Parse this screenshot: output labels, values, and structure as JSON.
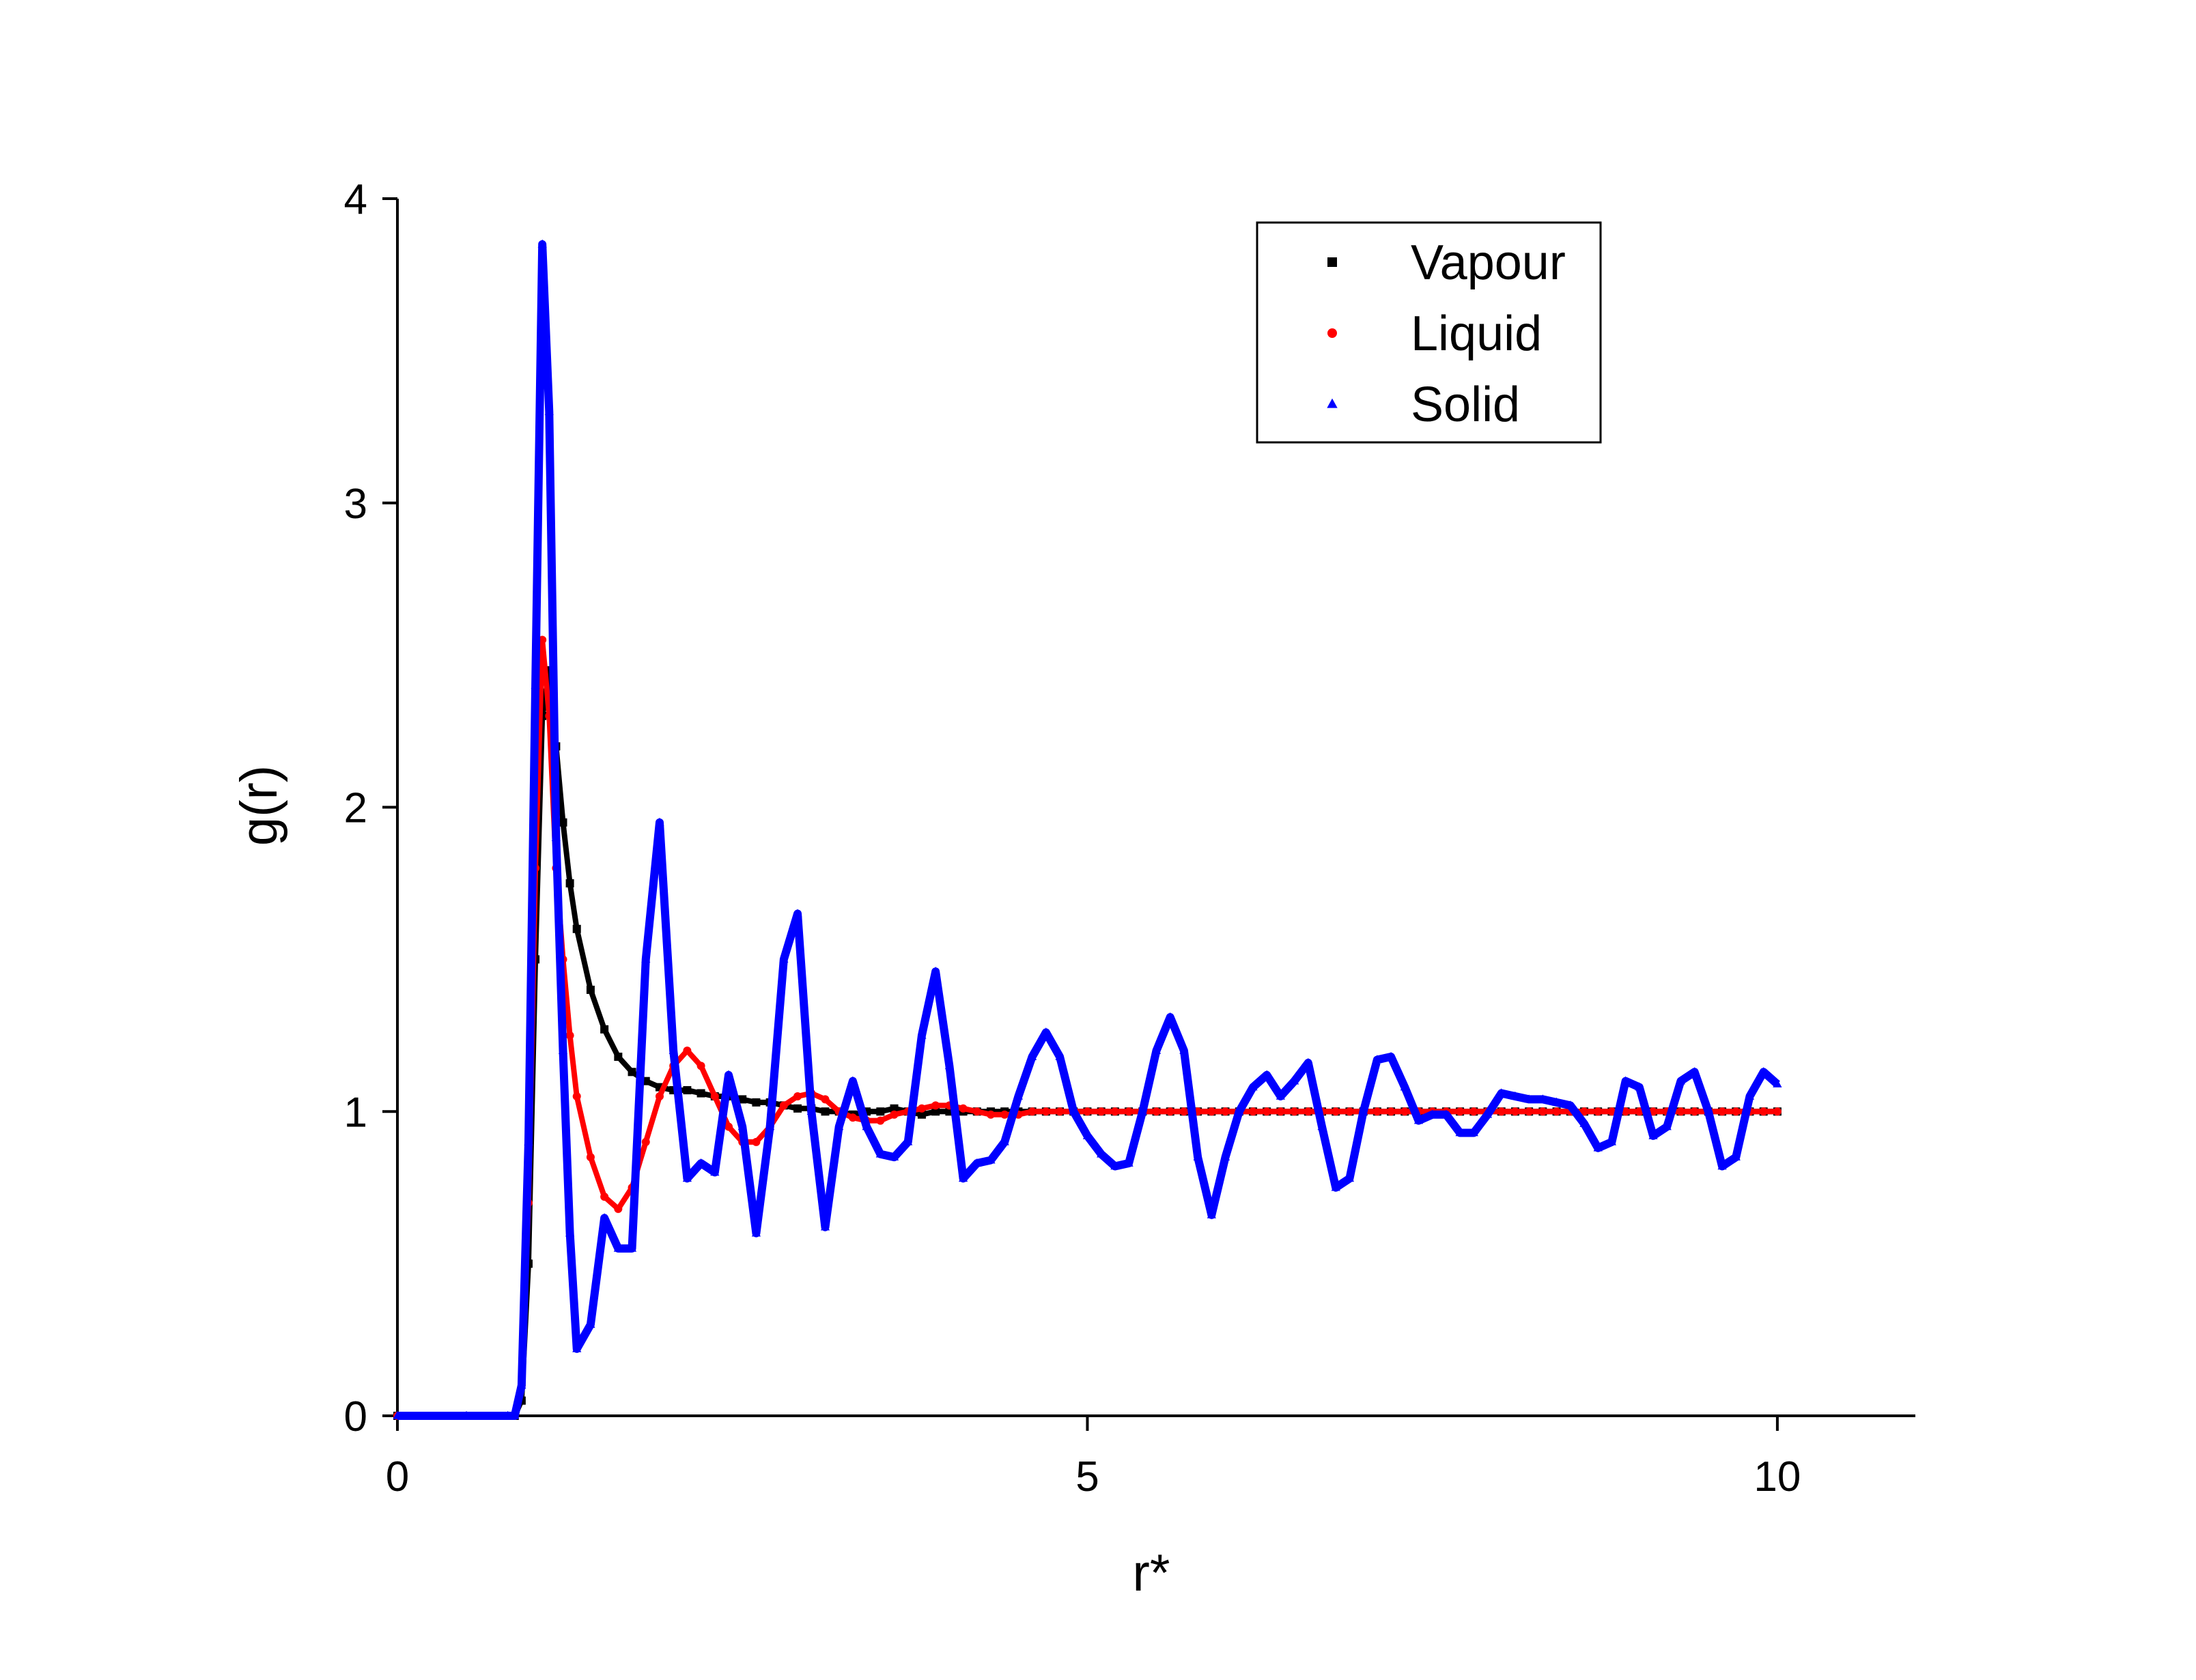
{
  "chart_data": {
    "type": "scatter",
    "x_label": "r*",
    "y_label": "g(r)",
    "x": [
      0,
      0.5,
      0.8,
      0.85,
      0.9,
      0.95,
      1.0,
      1.05,
      1.1,
      1.15,
      1.2,
      1.25,
      1.3,
      1.4,
      1.5,
      1.6,
      1.7,
      1.8,
      1.9,
      2.0,
      2.1,
      2.2,
      2.3,
      2.4,
      2.5,
      2.6,
      2.7,
      2.8,
      2.9,
      3.0,
      3.1,
      3.2,
      3.3,
      3.4,
      3.5,
      3.6,
      3.7,
      3.8,
      3.9,
      4.0,
      4.1,
      4.2,
      4.3,
      4.4,
      4.5,
      4.6,
      4.7,
      4.8,
      4.9,
      5.0,
      5.1,
      5.2,
      5.3,
      5.4,
      5.5,
      5.6,
      5.7,
      5.8,
      5.9,
      6.0,
      6.1,
      6.2,
      6.3,
      6.4,
      6.5,
      6.6,
      6.7,
      6.8,
      6.9,
      7.0,
      7.1,
      7.2,
      7.3,
      7.4,
      7.5,
      7.6,
      7.7,
      7.8,
      7.9,
      8.0,
      8.1,
      8.2,
      8.3,
      8.4,
      8.5,
      8.6,
      8.7,
      8.8,
      8.9,
      9.0,
      9.1,
      9.2,
      9.3,
      9.4,
      9.5,
      9.6,
      9.7,
      9.8,
      9.9,
      10.0
    ],
    "series": [
      {
        "name": "Vapour",
        "color": "#000000",
        "marker": "square",
        "values": [
          0,
          0,
          0,
          0,
          0.05,
          0.5,
          1.5,
          2.3,
          2.45,
          2.2,
          1.95,
          1.75,
          1.6,
          1.4,
          1.27,
          1.18,
          1.13,
          1.1,
          1.08,
          1.07,
          1.07,
          1.06,
          1.05,
          1.05,
          1.04,
          1.03,
          1.03,
          1.02,
          1.01,
          1.01,
          1.0,
          1.0,
          0.99,
          1.0,
          1.0,
          1.01,
          1.0,
          0.99,
          1.0,
          1.0,
          1.0,
          1.0,
          1.0,
          1.0,
          1.0,
          1.0,
          1.0,
          1.0,
          1.0,
          1.0,
          1.0,
          1.0,
          1.0,
          1.0,
          1.0,
          1.0,
          1.0,
          1.0,
          1.0,
          1.0,
          1.0,
          1.0,
          1.0,
          1.0,
          1.0,
          1.0,
          1.0,
          1.0,
          1.0,
          1.0,
          1.0,
          1.0,
          1.0,
          1.0,
          1.0,
          1.0,
          1.0,
          1.0,
          1.0,
          1.0,
          1.0,
          1.0,
          1.0,
          1.0,
          1.0,
          1.0,
          1.0,
          1.0,
          1.0,
          1.0,
          1.0,
          1.0,
          1.0,
          1.0,
          1.0,
          1.0,
          1.0,
          1.0,
          1.0,
          1.0
        ]
      },
      {
        "name": "Liquid",
        "color": "#ff0000",
        "marker": "circle",
        "values": [
          0,
          0,
          0,
          0,
          0.1,
          0.7,
          1.8,
          2.55,
          2.3,
          1.8,
          1.5,
          1.25,
          1.05,
          0.85,
          0.72,
          0.68,
          0.75,
          0.9,
          1.05,
          1.15,
          1.2,
          1.15,
          1.05,
          0.95,
          0.9,
          0.9,
          0.95,
          1.02,
          1.05,
          1.06,
          1.04,
          1.0,
          0.98,
          0.97,
          0.97,
          0.99,
          1.0,
          1.01,
          1.02,
          1.02,
          1.01,
          1.0,
          0.99,
          0.99,
          0.99,
          1.0,
          1.0,
          1.0,
          1.0,
          1.0,
          1.0,
          1.0,
          1.0,
          1.0,
          1.0,
          1.0,
          1.0,
          1.0,
          1.0,
          1.0,
          1.0,
          1.0,
          1.0,
          1.0,
          1.0,
          1.0,
          1.0,
          1.0,
          1.0,
          1.0,
          1.0,
          1.0,
          1.0,
          1.0,
          1.0,
          1.0,
          1.0,
          1.0,
          1.0,
          1.0,
          1.0,
          1.0,
          1.0,
          1.0,
          1.0,
          1.0,
          1.0,
          1.0,
          1.0,
          1.0,
          1.0,
          1.0,
          1.0,
          1.0,
          1.0,
          1.0,
          1.0,
          1.0,
          1.0,
          1.0
        ]
      },
      {
        "name": "Solid",
        "color": "#0000ff",
        "marker": "triangle",
        "values": [
          0,
          0,
          0,
          0,
          0.1,
          0.9,
          2.4,
          3.85,
          3.3,
          1.9,
          1.2,
          0.6,
          0.22,
          0.3,
          0.65,
          0.55,
          0.55,
          1.5,
          1.95,
          1.2,
          0.78,
          0.83,
          0.8,
          1.12,
          0.95,
          0.6,
          0.95,
          1.5,
          1.65,
          1.0,
          0.62,
          0.95,
          1.1,
          0.95,
          0.86,
          0.85,
          0.9,
          1.25,
          1.46,
          1.15,
          0.78,
          0.83,
          0.84,
          0.9,
          1.05,
          1.18,
          1.26,
          1.18,
          1.0,
          0.92,
          0.86,
          0.82,
          0.83,
          1.0,
          1.2,
          1.31,
          1.2,
          0.85,
          0.66,
          0.85,
          1.0,
          1.08,
          1.12,
          1.05,
          1.1,
          1.16,
          0.95,
          0.75,
          0.78,
          1.0,
          1.17,
          1.18,
          1.08,
          0.97,
          0.99,
          0.99,
          0.93,
          0.93,
          0.99,
          1.06,
          1.05,
          1.04,
          1.04,
          1.03,
          1.02,
          0.96,
          0.88,
          0.9,
          1.1,
          1.08,
          0.92,
          0.95,
          1.1,
          1.13,
          1.0,
          0.82,
          0.85,
          1.05,
          1.13,
          1.09
        ]
      }
    ],
    "xlim": [
      0,
      11
    ],
    "ylim": [
      0,
      4
    ],
    "xticks": [
      0,
      5,
      10
    ],
    "yticks": [
      0,
      1,
      2,
      3,
      4
    ],
    "legend": "upper-right"
  }
}
